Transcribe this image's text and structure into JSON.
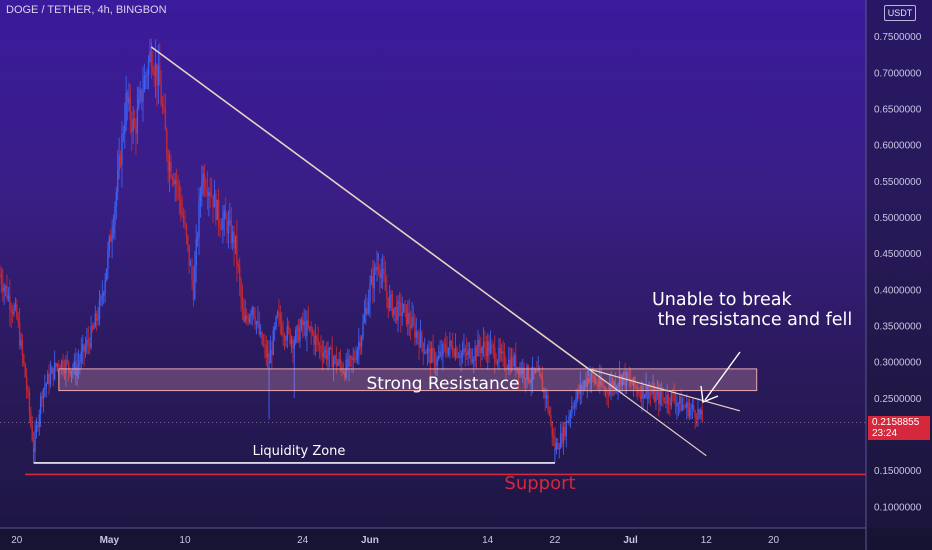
{
  "header": {
    "symbol_title": "DOGE / TETHER, 4h, BINGBON",
    "unit_badge": "USDT"
  },
  "price_tag": {
    "price": "0.2158855",
    "countdown": "23:24",
    "value": 0.2158855
  },
  "annotations": {
    "callout": "Unable to break\n the resistance and fell",
    "resistance_label": "Strong Resistance",
    "liquidity_label": "Liquidity Zone",
    "support_label": "Support"
  },
  "colors": {
    "up": "#3f5ff0",
    "down": "#c32832",
    "support": "#d6283c",
    "trend": "#e8d2c0"
  },
  "chart_data": {
    "type": "candlestick",
    "title": "",
    "y_axis": {
      "ticks": [
        "0.1000000",
        "0.1500000",
        "0.2000000",
        "0.2500000",
        "0.3000000",
        "0.3500000",
        "0.4000000",
        "0.4500000",
        "0.5000000",
        "0.5500000",
        "0.6000000",
        "0.6500000",
        "0.7000000",
        "0.7500000"
      ],
      "tick_values": [
        0.1,
        0.15,
        0.2,
        0.25,
        0.3,
        0.35,
        0.4,
        0.45,
        0.5,
        0.55,
        0.6,
        0.65,
        0.7,
        0.75
      ],
      "range": [
        0.07,
        0.8
      ]
    },
    "x_axis": {
      "ticks": [
        "20",
        "May",
        "10",
        "24",
        "Jun",
        "14",
        "22",
        "Jul",
        "12",
        "20"
      ],
      "tick_days": [
        0,
        11,
        20,
        34,
        42,
        56,
        64,
        73,
        82,
        90
      ],
      "range_days": [
        -2,
        101
      ]
    },
    "path": [
      [
        -2,
        0.42
      ],
      [
        0,
        0.36
      ],
      [
        1,
        0.28
      ],
      [
        2,
        0.18
      ],
      [
        3,
        0.26
      ],
      [
        5,
        0.3
      ],
      [
        7,
        0.29
      ],
      [
        9,
        0.34
      ],
      [
        10,
        0.38
      ],
      [
        11,
        0.46
      ],
      [
        12,
        0.55
      ],
      [
        13,
        0.66
      ],
      [
        14,
        0.62
      ],
      [
        15,
        0.68
      ],
      [
        16,
        0.73
      ],
      [
        17,
        0.68
      ],
      [
        18,
        0.58
      ],
      [
        19,
        0.55
      ],
      [
        20,
        0.48
      ],
      [
        21,
        0.4
      ],
      [
        22,
        0.56
      ],
      [
        23,
        0.54
      ],
      [
        24,
        0.5
      ],
      [
        25,
        0.49
      ],
      [
        26,
        0.46
      ],
      [
        27,
        0.35
      ],
      [
        28,
        0.38
      ],
      [
        29,
        0.33
      ],
      [
        30,
        0.3
      ],
      [
        31,
        0.36
      ],
      [
        32,
        0.34
      ],
      [
        33,
        0.33
      ],
      [
        34,
        0.35
      ],
      [
        35,
        0.34
      ],
      [
        36,
        0.32
      ],
      [
        37,
        0.31
      ],
      [
        38,
        0.3
      ],
      [
        39,
        0.29
      ],
      [
        40,
        0.3
      ],
      [
        41,
        0.34
      ],
      [
        42,
        0.4
      ],
      [
        43,
        0.44
      ],
      [
        44,
        0.39
      ],
      [
        45,
        0.37
      ],
      [
        46,
        0.37
      ],
      [
        47,
        0.35
      ],
      [
        48,
        0.33
      ],
      [
        49,
        0.31
      ],
      [
        50,
        0.3
      ],
      [
        51,
        0.32
      ],
      [
        52,
        0.32
      ],
      [
        53,
        0.31
      ],
      [
        54,
        0.31
      ],
      [
        55,
        0.32
      ],
      [
        56,
        0.32
      ],
      [
        57,
        0.31
      ],
      [
        58,
        0.3
      ],
      [
        59,
        0.3
      ],
      [
        60,
        0.29
      ],
      [
        61,
        0.28
      ],
      [
        62,
        0.28
      ],
      [
        63,
        0.25
      ],
      [
        64,
        0.18
      ],
      [
        65,
        0.2
      ],
      [
        66,
        0.24
      ],
      [
        67,
        0.26
      ],
      [
        68,
        0.28
      ],
      [
        69,
        0.27
      ],
      [
        70,
        0.26
      ],
      [
        71,
        0.27
      ],
      [
        72,
        0.28
      ],
      [
        73,
        0.27
      ],
      [
        74,
        0.26
      ],
      [
        75,
        0.26
      ],
      [
        76,
        0.25
      ],
      [
        77,
        0.25
      ],
      [
        78,
        0.25
      ],
      [
        79,
        0.24
      ],
      [
        80,
        0.235
      ],
      [
        81,
        0.23
      ],
      [
        81.6,
        0.2159
      ]
    ],
    "wicks": [
      {
        "day": 2,
        "low": 0.16
      },
      {
        "day": 16,
        "high": 0.74
      },
      {
        "day": 30,
        "low": 0.22
      },
      {
        "day": 33,
        "low": 0.25
      },
      {
        "day": 43,
        "high": 0.45
      },
      {
        "day": 64,
        "low": 0.16
      },
      {
        "day": 68,
        "high": 0.29
      }
    ],
    "overlays": {
      "main_trendline": {
        "from": [
          16,
          0.735
        ],
        "to": [
          68,
          0.29
        ]
      },
      "lower_trendline": {
        "from": [
          68,
          0.29
        ],
        "to": [
          82,
          0.17
        ]
      },
      "upper_trendline": {
        "from": [
          68,
          0.29
        ],
        "to": [
          86,
          0.232
        ]
      },
      "resistance_zone": {
        "from_day": 5,
        "to_day": 88,
        "low": 0.26,
        "high": 0.29
      },
      "liquidity_line": {
        "from_day": 2,
        "to_day": 64,
        "value": 0.16
      },
      "support_line": {
        "value": 0.144
      },
      "current_price_line": {
        "value": 0.2159
      }
    }
  }
}
